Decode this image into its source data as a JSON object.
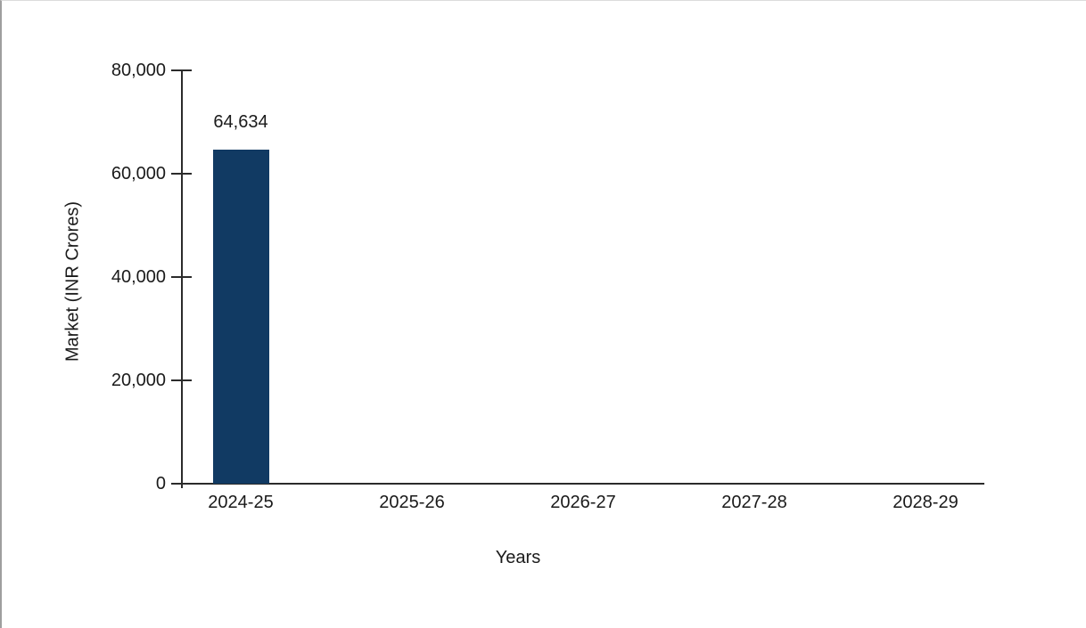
{
  "chart_data": {
    "type": "bar",
    "categories": [
      "2024-25",
      "2025-26",
      "2026-27",
      "2027-28",
      "2028-29"
    ],
    "values": [
      64634,
      null,
      null,
      null,
      null
    ],
    "data_labels": [
      "64,634",
      "",
      "",
      "",
      ""
    ],
    "title": "",
    "xlabel": "Years",
    "ylabel": "Market (INR Crores)",
    "ylim": [
      0,
      80000
    ],
    "yticks": [
      0,
      20000,
      40000,
      60000,
      80000
    ],
    "ytick_labels": [
      "0",
      "20,000",
      "40,000",
      "60,000",
      "80,000"
    ],
    "grid": false,
    "legend": "none",
    "colors": {
      "bar_fill": "#113a63",
      "axis_line": "#2b2b2b",
      "text": "#1a1a1a",
      "frame_border_left": "#9e9e9e",
      "frame_border_top": "#dcdcdc",
      "background": "#ffffff"
    }
  }
}
